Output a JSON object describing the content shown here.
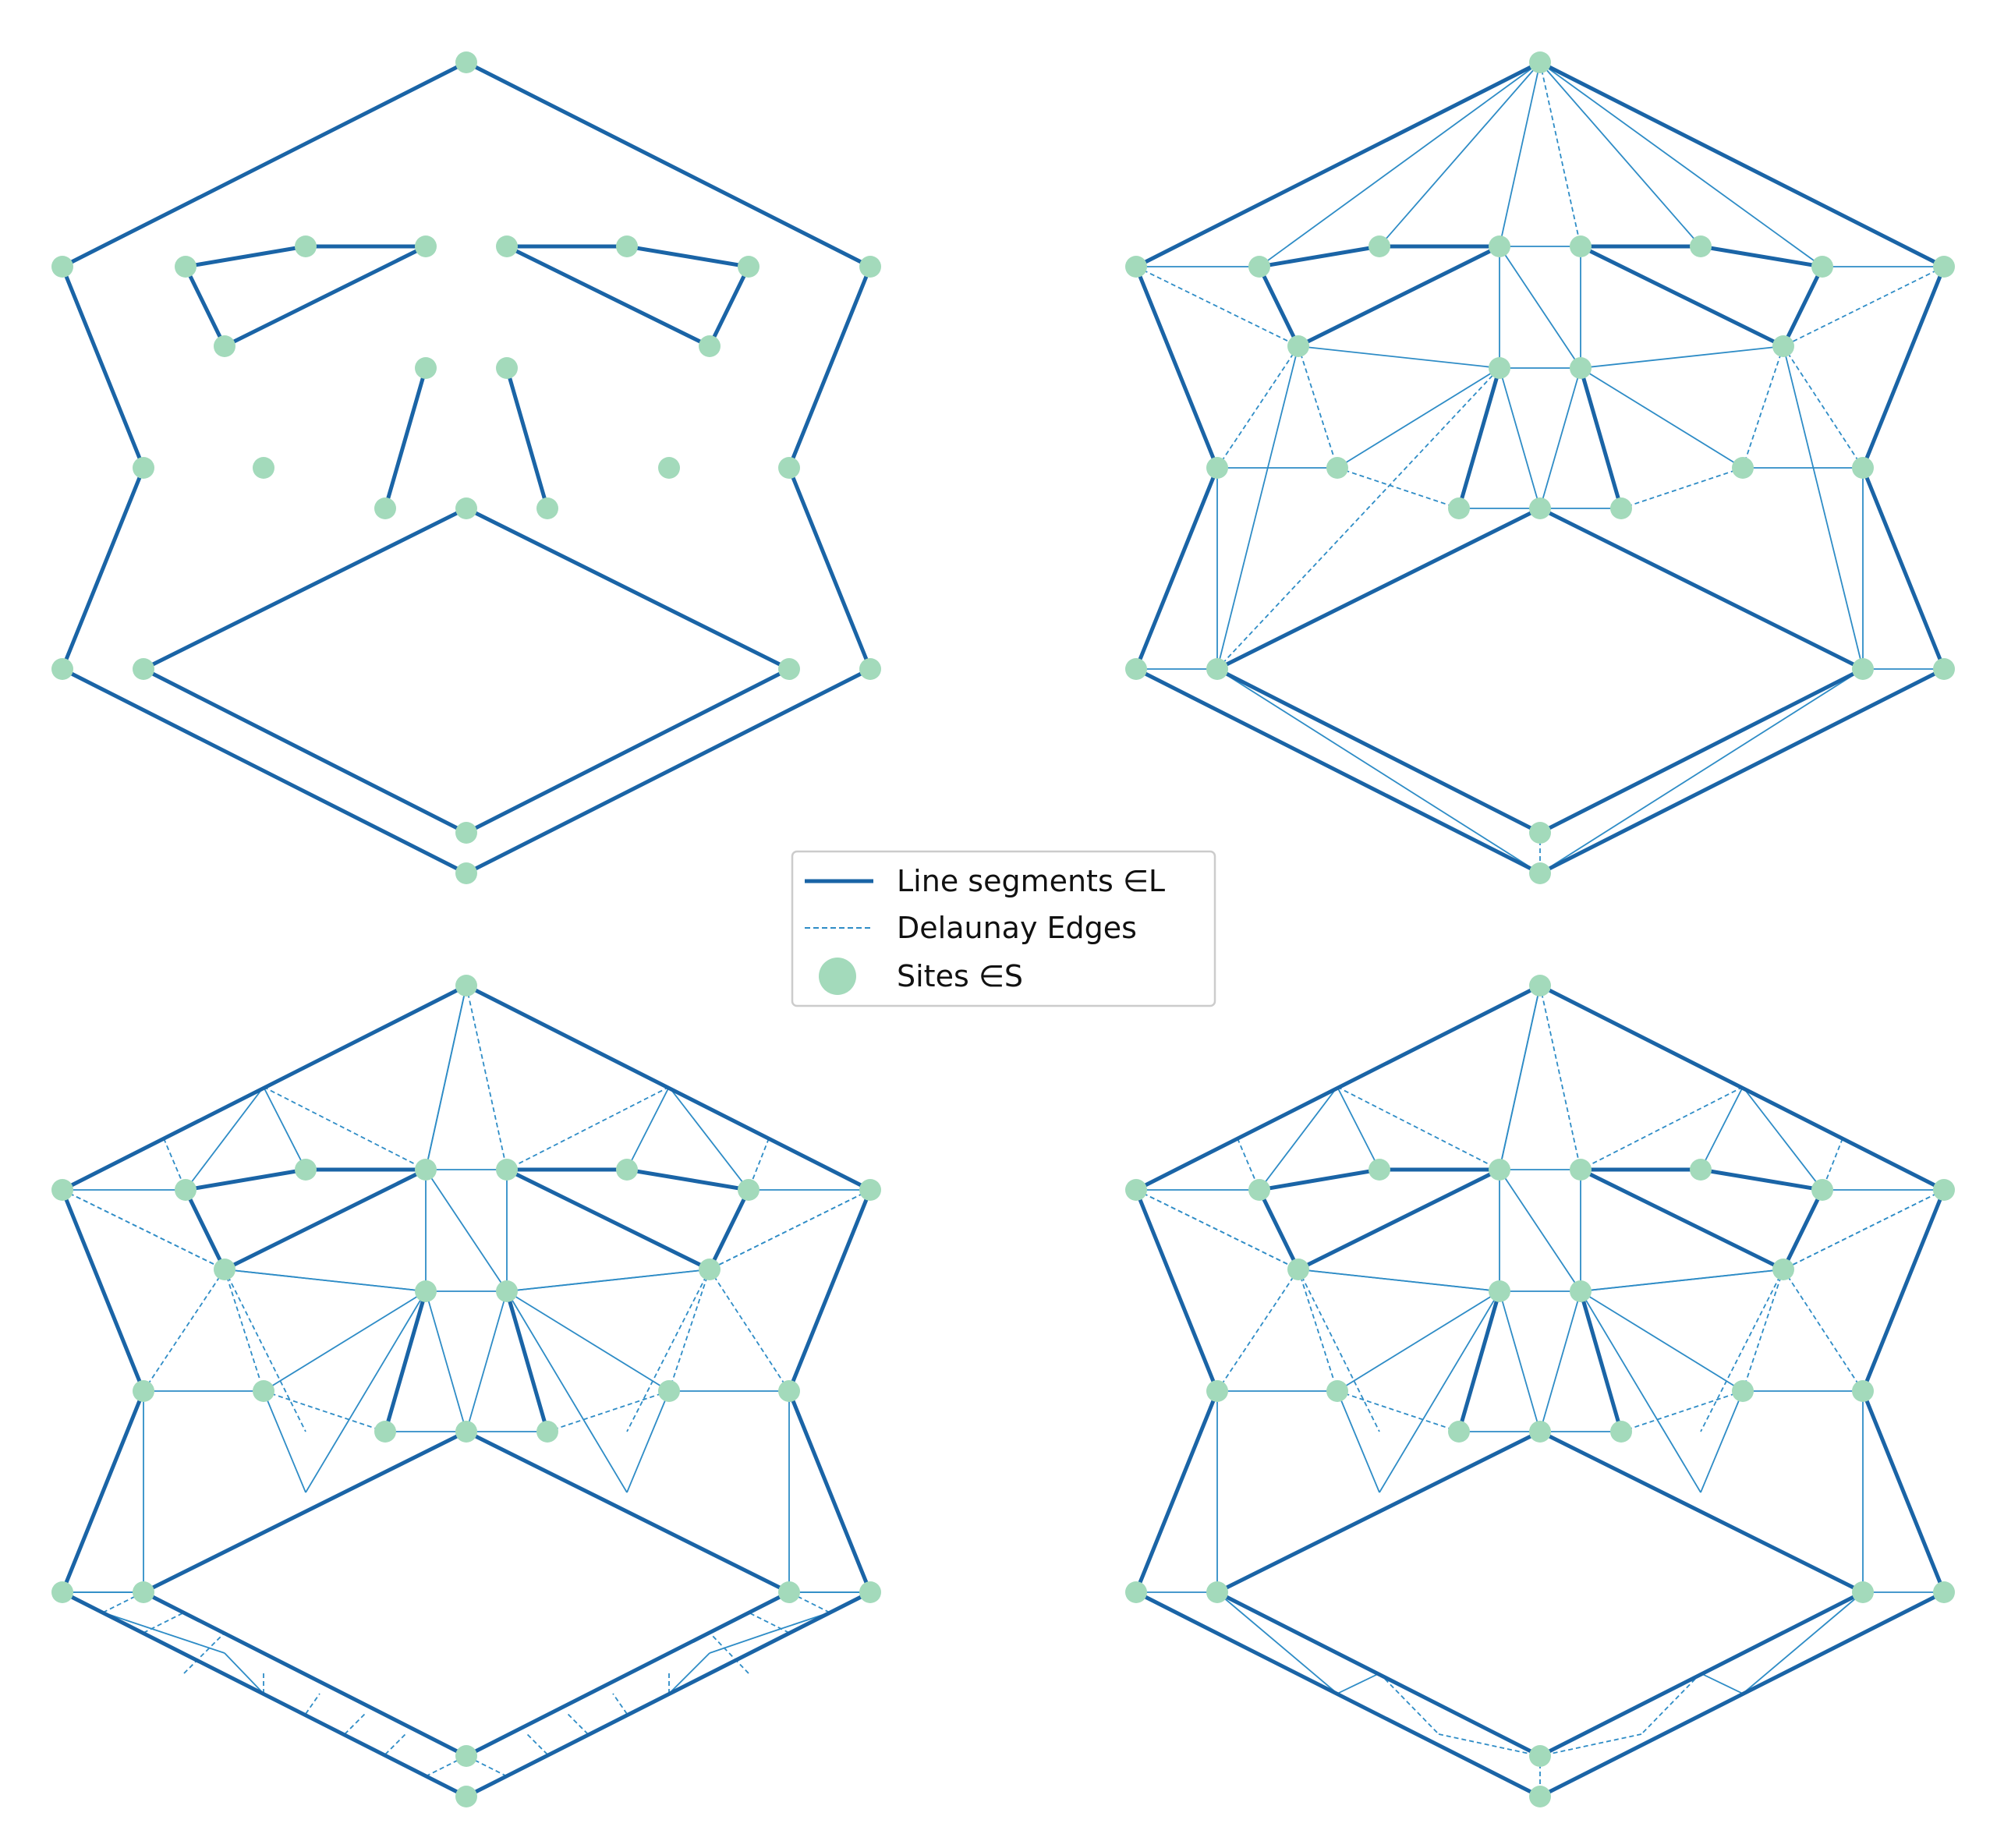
{
  "legend": {
    "segments_label": "Line segments ∈L",
    "delaunay_label": "Delaunay Edges",
    "sites_label": "Sites ∈S"
  },
  "colors": {
    "segment": "#1a64a6",
    "delaunay": "#2e8cc6",
    "site": "#a3dabb"
  },
  "panels": [
    "top-left",
    "top-right",
    "bottom-left",
    "bottom-right"
  ],
  "panel_views": {
    "top-left": "segments-and-sites",
    "top-right": "delaunay-triangulation",
    "bottom-left": "refined-delaunay",
    "bottom-right": "constrained-delaunay"
  }
}
